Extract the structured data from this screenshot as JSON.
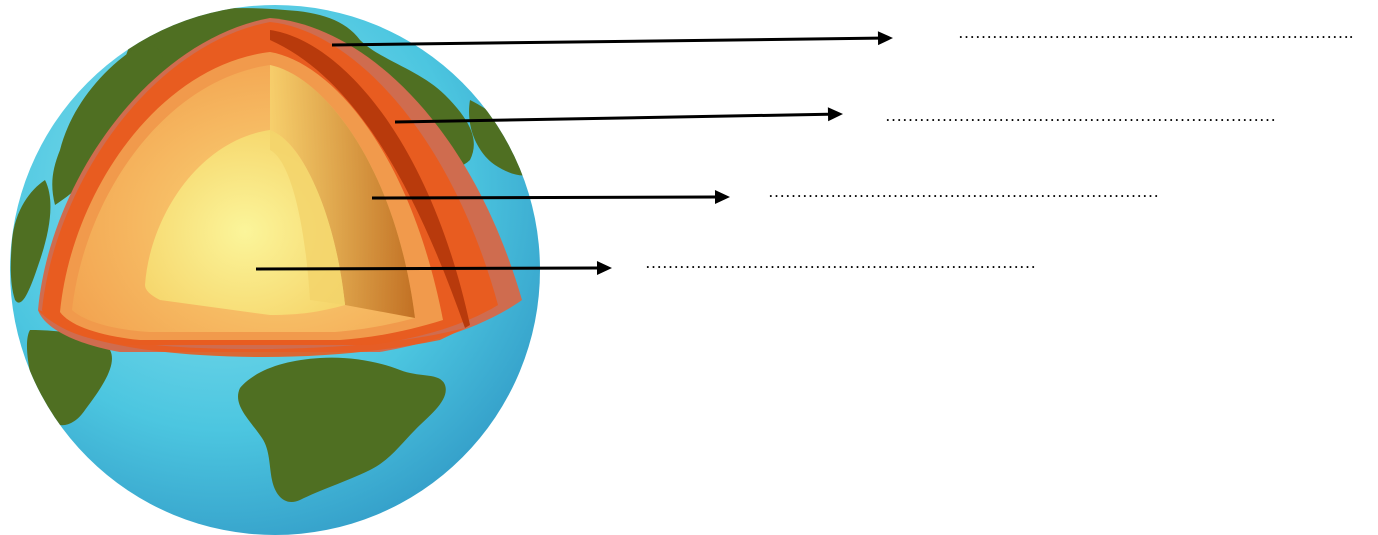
{
  "figure": {
    "kind": "earth-layers-cutaway",
    "label_count": 4,
    "colors": {
      "ocean": "#4cc6e0",
      "ocean_dark": "#3aa6cf",
      "land": "#4f6f22",
      "crust_outer": "#cf6c4f",
      "crust_edge": "#a94a25",
      "upper_mantle": "#e85c20",
      "lower_mantle": "#b83a0c",
      "mantle": "#f19a4c",
      "outer_core": "#f6b55a",
      "inner_core": "#f7ec88",
      "arrow": "#000000"
    }
  },
  "labels": [
    {
      "id": "crust",
      "text": "……………………………………………………………."
    },
    {
      "id": "mantle",
      "text": "……………………………………………………………"
    },
    {
      "id": "outer-core",
      "text": "……………………………………………………………"
    },
    {
      "id": "inner-core",
      "text": "……………………………………………………………"
    }
  ]
}
